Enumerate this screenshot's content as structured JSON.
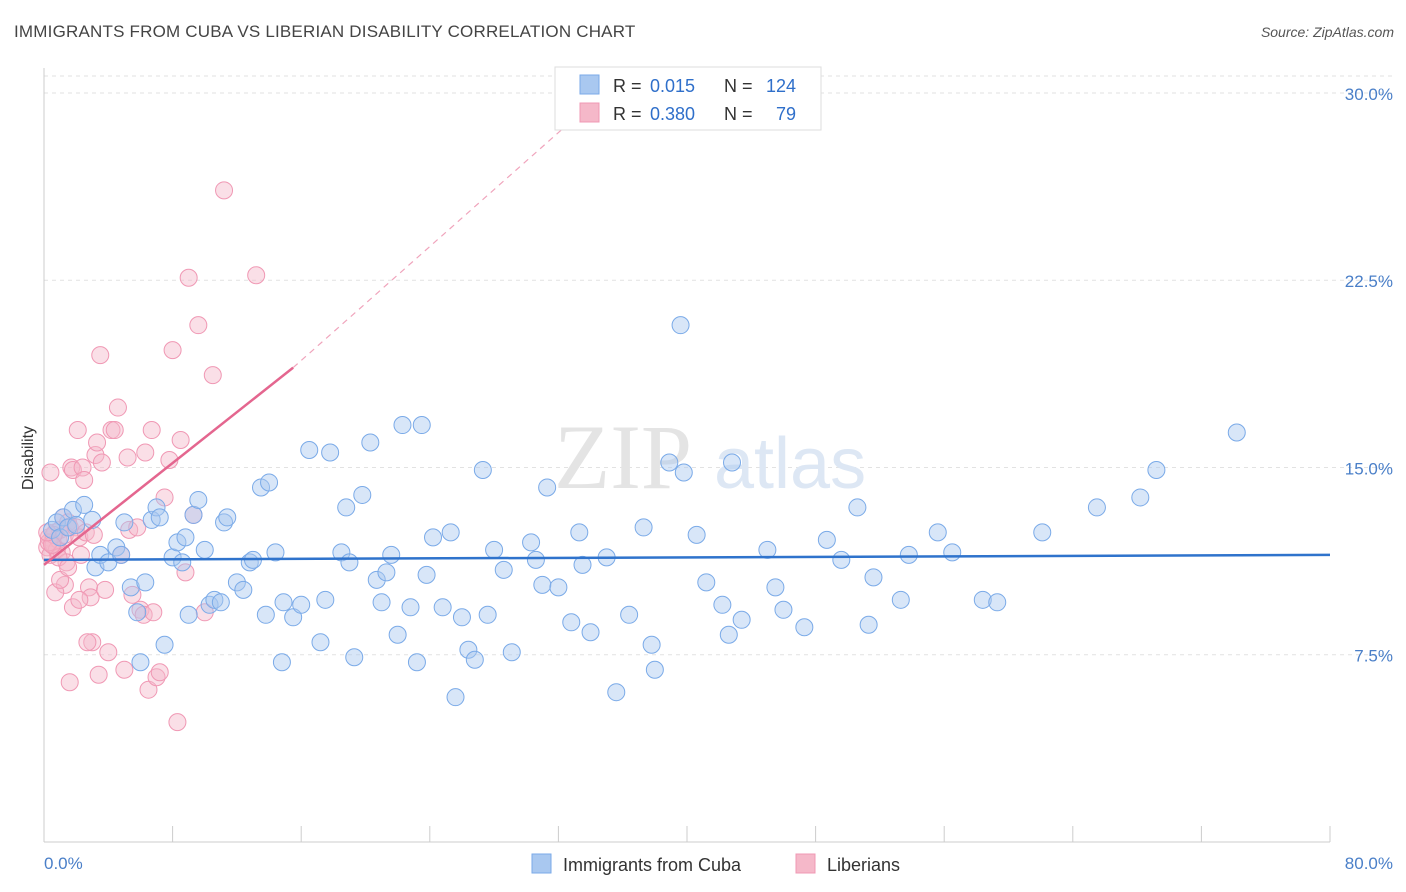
{
  "title": "IMMIGRANTS FROM CUBA VS LIBERIAN DISABILITY CORRELATION CHART",
  "source": "Source: ZipAtlas.com",
  "watermark": {
    "zip": "ZIP",
    "atlas": "atlas"
  },
  "legend": {
    "rows": [
      {
        "r_label": "R =",
        "r_value": "0.015",
        "n_label": "N =",
        "n_value": "124",
        "color": "#a9c8f0"
      },
      {
        "r_label": "R =",
        "r_value": "0.380",
        "n_label": "N =",
        "n_value": "79",
        "color": "#f5b8c9"
      }
    ]
  },
  "bottom_legend": [
    "Immigrants from Cuba",
    "Liberians"
  ],
  "chart_data": {
    "type": "scatter",
    "title": "IMMIGRANTS FROM CUBA VS LIBERIAN DISABILITY CORRELATION CHART",
    "xlabel": "",
    "ylabel": "Disability",
    "xlim": [
      0,
      80
    ],
    "ylim": [
      0,
      31
    ],
    "x_tick_labels": [
      "0.0%",
      "80.0%"
    ],
    "y_ticks": [
      7.5,
      15.0,
      22.5,
      30.0
    ],
    "y_tick_labels": [
      "7.5%",
      "15.0%",
      "22.5%",
      "30.0%"
    ],
    "grid": "horizontal dashed",
    "series": [
      {
        "name": "Immigrants from Cuba",
        "color": "#7aaae8",
        "trend": {
          "x": [
            0,
            80
          ],
          "y": [
            11.3,
            11.5
          ]
        },
        "points": [
          [
            0.5,
            12.5
          ],
          [
            0.8,
            12.8
          ],
          [
            1.0,
            12.2
          ],
          [
            1.2,
            13.0
          ],
          [
            1.5,
            12.6
          ],
          [
            1.8,
            13.3
          ],
          [
            2.0,
            12.7
          ],
          [
            2.5,
            13.5
          ],
          [
            3.0,
            12.9
          ],
          [
            3.2,
            11.0
          ],
          [
            3.5,
            11.5
          ],
          [
            4.0,
            11.2
          ],
          [
            4.5,
            11.8
          ],
          [
            4.8,
            11.5
          ],
          [
            5.0,
            12.8
          ],
          [
            5.4,
            10.2
          ],
          [
            5.8,
            9.2
          ],
          [
            6.0,
            7.2
          ],
          [
            6.3,
            10.4
          ],
          [
            6.7,
            12.9
          ],
          [
            7.0,
            13.4
          ],
          [
            7.2,
            13.0
          ],
          [
            7.5,
            7.9
          ],
          [
            8.0,
            11.4
          ],
          [
            8.3,
            12.0
          ],
          [
            8.6,
            11.2
          ],
          [
            8.8,
            12.2
          ],
          [
            9.0,
            9.1
          ],
          [
            9.3,
            13.1
          ],
          [
            9.6,
            13.7
          ],
          [
            10.0,
            11.7
          ],
          [
            10.3,
            9.5
          ],
          [
            10.6,
            9.7
          ],
          [
            11.0,
            9.6
          ],
          [
            11.2,
            12.8
          ],
          [
            11.4,
            13.0
          ],
          [
            12.0,
            10.4
          ],
          [
            12.4,
            10.1
          ],
          [
            12.8,
            11.2
          ],
          [
            13.0,
            11.3
          ],
          [
            13.5,
            14.2
          ],
          [
            13.8,
            9.1
          ],
          [
            14.0,
            14.4
          ],
          [
            14.4,
            11.6
          ],
          [
            14.8,
            7.2
          ],
          [
            14.9,
            9.6
          ],
          [
            15.5,
            9.0
          ],
          [
            16.0,
            9.5
          ],
          [
            16.5,
            15.7
          ],
          [
            17.2,
            8.0
          ],
          [
            17.5,
            9.7
          ],
          [
            17.8,
            15.6
          ],
          [
            18.5,
            11.6
          ],
          [
            18.8,
            13.4
          ],
          [
            19.0,
            11.2
          ],
          [
            19.3,
            7.4
          ],
          [
            19.8,
            13.9
          ],
          [
            20.3,
            16.0
          ],
          [
            20.7,
            10.5
          ],
          [
            21.0,
            9.6
          ],
          [
            21.3,
            10.8
          ],
          [
            21.6,
            11.5
          ],
          [
            22.0,
            8.3
          ],
          [
            22.3,
            16.7
          ],
          [
            22.8,
            9.4
          ],
          [
            23.2,
            7.2
          ],
          [
            23.5,
            16.7
          ],
          [
            23.8,
            10.7
          ],
          [
            24.2,
            12.2
          ],
          [
            24.8,
            9.4
          ],
          [
            25.3,
            12.4
          ],
          [
            25.6,
            5.8
          ],
          [
            26.0,
            9.0
          ],
          [
            26.4,
            7.7
          ],
          [
            26.8,
            7.3
          ],
          [
            27.3,
            14.9
          ],
          [
            27.6,
            9.1
          ],
          [
            28.0,
            11.7
          ],
          [
            28.6,
            10.9
          ],
          [
            29.1,
            7.6
          ],
          [
            30.3,
            12.0
          ],
          [
            30.6,
            11.3
          ],
          [
            31.0,
            10.3
          ],
          [
            31.3,
            14.2
          ],
          [
            32.0,
            10.2
          ],
          [
            32.8,
            8.8
          ],
          [
            33.3,
            12.4
          ],
          [
            33.5,
            11.1
          ],
          [
            34.0,
            8.4
          ],
          [
            35.0,
            11.4
          ],
          [
            35.6,
            6.0
          ],
          [
            36.4,
            9.1
          ],
          [
            37.3,
            12.6
          ],
          [
            37.8,
            7.9
          ],
          [
            38.0,
            6.9
          ],
          [
            38.9,
            15.2
          ],
          [
            39.6,
            20.7
          ],
          [
            39.8,
            14.8
          ],
          [
            40.6,
            12.3
          ],
          [
            41.2,
            10.4
          ],
          [
            42.2,
            9.5
          ],
          [
            42.6,
            8.3
          ],
          [
            42.8,
            15.2
          ],
          [
            43.4,
            8.9
          ],
          [
            45.0,
            11.7
          ],
          [
            45.5,
            10.2
          ],
          [
            46.0,
            9.3
          ],
          [
            47.3,
            8.6
          ],
          [
            48.7,
            12.1
          ],
          [
            49.6,
            11.3
          ],
          [
            50.6,
            13.4
          ],
          [
            51.3,
            8.7
          ],
          [
            51.6,
            10.6
          ],
          [
            53.3,
            9.7
          ],
          [
            53.8,
            11.5
          ],
          [
            55.6,
            12.4
          ],
          [
            56.5,
            11.6
          ],
          [
            58.4,
            9.7
          ],
          [
            59.3,
            9.6
          ],
          [
            62.1,
            12.4
          ],
          [
            65.5,
            13.4
          ],
          [
            68.2,
            13.8
          ],
          [
            69.2,
            14.9
          ],
          [
            74.2,
            16.4
          ]
        ]
      },
      {
        "name": "Liberians",
        "color": "#f098b4",
        "trend": {
          "x": [
            0,
            15.5
          ],
          "y": [
            11.1,
            19.0
          ]
        },
        "trend_extension": {
          "x": [
            15.5,
            32.5
          ],
          "y": [
            19.0,
            28.7
          ]
        },
        "points": [
          [
            0.2,
            11.8
          ],
          [
            0.3,
            12.2
          ],
          [
            0.4,
            11.5
          ],
          [
            0.5,
            12.0
          ],
          [
            0.6,
            11.9
          ],
          [
            0.7,
            12.4
          ],
          [
            0.8,
            11.7
          ],
          [
            0.9,
            12.1
          ],
          [
            1.0,
            12.5
          ],
          [
            1.1,
            11.6
          ],
          [
            1.2,
            13.0
          ],
          [
            1.3,
            12.3
          ],
          [
            1.4,
            11.2
          ],
          [
            1.5,
            12.8
          ],
          [
            1.6,
            12.6
          ],
          [
            1.7,
            15.0
          ],
          [
            1.8,
            14.9
          ],
          [
            2.0,
            12.6
          ],
          [
            2.1,
            16.5
          ],
          [
            2.2,
            12.2
          ],
          [
            2.3,
            11.5
          ],
          [
            2.4,
            15.0
          ],
          [
            2.5,
            14.5
          ],
          [
            2.6,
            12.4
          ],
          [
            2.8,
            10.2
          ],
          [
            2.9,
            9.8
          ],
          [
            3.0,
            8.0
          ],
          [
            3.1,
            12.3
          ],
          [
            3.2,
            15.5
          ],
          [
            3.3,
            16.0
          ],
          [
            3.5,
            19.5
          ],
          [
            3.6,
            15.2
          ],
          [
            3.8,
            10.1
          ],
          [
            4.0,
            7.6
          ],
          [
            4.2,
            16.5
          ],
          [
            4.4,
            16.5
          ],
          [
            4.6,
            17.4
          ],
          [
            4.8,
            11.5
          ],
          [
            5.0,
            6.9
          ],
          [
            5.2,
            15.4
          ],
          [
            5.3,
            12.5
          ],
          [
            5.5,
            9.9
          ],
          [
            5.8,
            12.6
          ],
          [
            6.0,
            9.3
          ],
          [
            6.2,
            9.1
          ],
          [
            6.3,
            15.6
          ],
          [
            6.5,
            6.1
          ],
          [
            6.7,
            16.5
          ],
          [
            6.8,
            9.2
          ],
          [
            7.0,
            6.6
          ],
          [
            7.2,
            6.8
          ],
          [
            7.5,
            13.8
          ],
          [
            7.8,
            15.3
          ],
          [
            8.0,
            19.7
          ],
          [
            8.3,
            4.8
          ],
          [
            8.5,
            16.1
          ],
          [
            8.8,
            10.8
          ],
          [
            9.0,
            22.6
          ],
          [
            9.3,
            13.1
          ],
          [
            9.6,
            20.7
          ],
          [
            10.0,
            9.2
          ],
          [
            10.5,
            18.7
          ],
          [
            11.2,
            26.1
          ],
          [
            13.2,
            22.7
          ],
          [
            0.3,
            12.0
          ],
          [
            0.6,
            12.3
          ],
          [
            0.9,
            11.4
          ],
          [
            1.3,
            10.3
          ],
          [
            1.6,
            6.4
          ],
          [
            0.4,
            14.8
          ],
          [
            0.5,
            11.9
          ],
          [
            0.7,
            10.0
          ],
          [
            1.0,
            10.5
          ],
          [
            1.5,
            11.0
          ],
          [
            1.8,
            9.4
          ],
          [
            2.2,
            9.7
          ],
          [
            2.7,
            8.0
          ],
          [
            3.4,
            6.7
          ],
          [
            0.2,
            12.4
          ]
        ]
      }
    ]
  }
}
